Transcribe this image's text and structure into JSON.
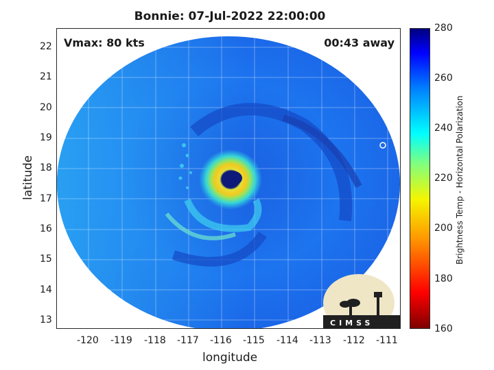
{
  "title": "Bonnie: 07-Jul-2022 22:00:00",
  "vmax_label": "Vmax: 80 kts",
  "time_offset_label": "00:43 away",
  "xlabel": "longitude",
  "ylabel": "latitude",
  "x_ticks": [
    "-120",
    "-119",
    "-118",
    "-117",
    "-116",
    "-115",
    "-114",
    "-113",
    "-112",
    "-111"
  ],
  "y_ticks": [
    "22",
    "21",
    "20",
    "19",
    "18",
    "17",
    "16",
    "15",
    "14",
    "13"
  ],
  "colorbar": {
    "label": "Brightness Temp - Horizontal Polarization",
    "ticks": [
      "280",
      "260",
      "240",
      "220",
      "200",
      "180",
      "160"
    ],
    "range": [
      160,
      280
    ]
  },
  "logo": {
    "text": "CIMSS"
  },
  "colors": {
    "background_scan": "#1f7cf2",
    "eyewall": "#f2e025",
    "eye": "#1a237e"
  }
}
